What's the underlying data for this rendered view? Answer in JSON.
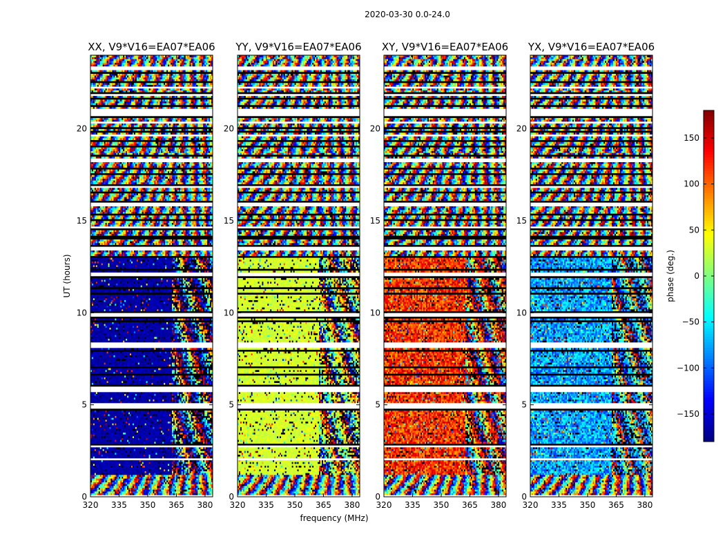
{
  "figure_title": "2020-03-30 0.0-24.0",
  "chart_data": [
    {
      "type": "heatmap",
      "title": "XX, V9*V16=EA07*EA06",
      "polarization": "XX",
      "xlim": [
        320,
        384
      ],
      "ylim": [
        0,
        24
      ],
      "xticks": [
        320,
        335,
        350,
        365,
        380
      ],
      "yticks": [
        0,
        5,
        10,
        15,
        20
      ],
      "ylabel": "UT (hours)",
      "xlabel": "",
      "band_phase_deg": {
        "low_freq_day": -165,
        "high_freq_day": "noisy",
        "night": "random"
      }
    },
    {
      "type": "heatmap",
      "title": "YY, V9*V16=EA07*EA06",
      "polarization": "YY",
      "xlim": [
        320,
        384
      ],
      "ylim": [
        0,
        24
      ],
      "xticks": [
        320,
        335,
        350,
        365,
        380
      ],
      "yticks": [
        0,
        5,
        10,
        15,
        20
      ],
      "ylabel": "",
      "xlabel": "frequency (MHz)",
      "band_phase_deg": {
        "low_freq_day": 30,
        "high_freq_day": "noisy",
        "night": "random"
      }
    },
    {
      "type": "heatmap",
      "title": "XY, V9*V16=EA07*EA06",
      "polarization": "XY",
      "xlim": [
        320,
        384
      ],
      "ylim": [
        0,
        24
      ],
      "xticks": [
        320,
        335,
        350,
        365,
        380
      ],
      "yticks": [
        0,
        5,
        10,
        15,
        20
      ],
      "ylabel": "",
      "xlabel": "",
      "band_phase_deg": {
        "low_freq_day": 120,
        "high_freq_day": "noisy",
        "night": "random"
      }
    },
    {
      "type": "heatmap",
      "title": "YX, V9*V16=EA07*EA06",
      "polarization": "YX",
      "xlim": [
        320,
        384
      ],
      "ylim": [
        0,
        24
      ],
      "xticks": [
        320,
        335,
        350,
        365,
        380
      ],
      "yticks": [
        0,
        5,
        10,
        15,
        20
      ],
      "ylabel": "",
      "xlabel": "",
      "band_phase_deg": {
        "low_freq_day": -75,
        "high_freq_day": "noisy",
        "night": "random"
      }
    }
  ],
  "colorbar": {
    "label": "phase (deg.)",
    "range": [
      -180,
      180
    ],
    "ticks": [
      150,
      100,
      50,
      0,
      -50,
      -100,
      -150
    ],
    "tick_labels": [
      "150",
      "100",
      "50",
      "0",
      "−50",
      "−100",
      "−150"
    ],
    "colormap": "jet"
  }
}
